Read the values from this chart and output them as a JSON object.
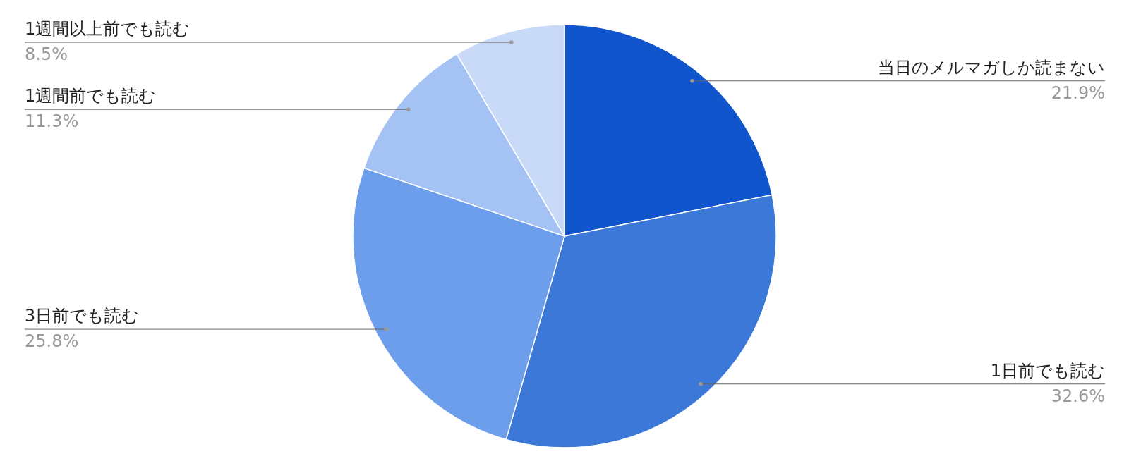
{
  "chart_data": {
    "type": "pie",
    "categories": [
      "当日のメルマガしか読まない",
      "1日前でも読む",
      "3日前でも読む",
      "1週間前でも読む",
      "1週間以上前でも読む"
    ],
    "values": [
      21.9,
      32.6,
      25.8,
      11.3,
      8.5
    ],
    "value_labels": [
      "21.9%",
      "32.6%",
      "25.8%",
      "11.3%",
      "8.5%"
    ],
    "colors": [
      "#1155cc",
      "#3c78d8",
      "#6d9eeb",
      "#a4c2f4",
      "#c9daf8"
    ],
    "legend": false
  }
}
